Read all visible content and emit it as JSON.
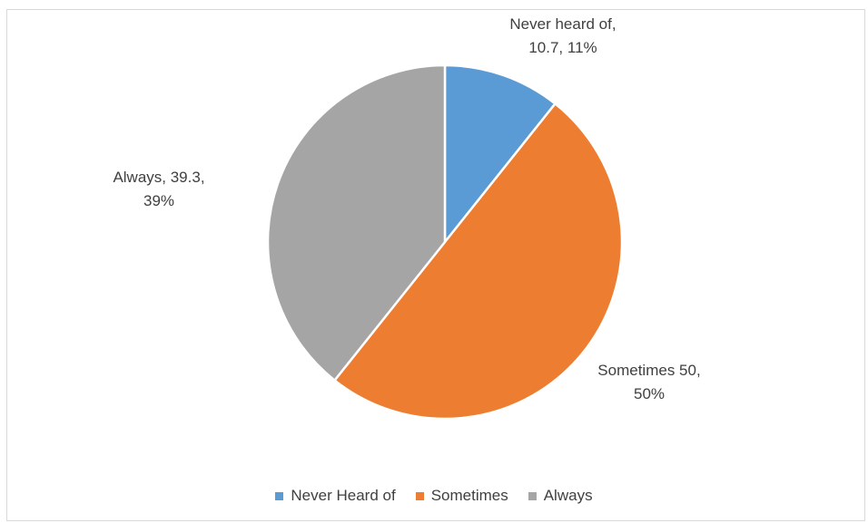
{
  "chart_data": {
    "type": "pie",
    "categories": [
      "Never Heard of",
      "Sometimes",
      "Always"
    ],
    "values": [
      10.7,
      50,
      39.3
    ],
    "percents": [
      11,
      50,
      39
    ],
    "colors": [
      "#5b9bd5",
      "#ed7d31",
      "#a5a5a5"
    ],
    "data_labels": [
      {
        "line1": "Never heard of,",
        "line2": "10.7, 11%"
      },
      {
        "line1": "Sometimes 50,",
        "line2": "50%"
      },
      {
        "line1": "Always, 39.3,",
        "line2": "39%"
      }
    ],
    "legend_position": "bottom",
    "start_angle": "top, clockwise"
  }
}
